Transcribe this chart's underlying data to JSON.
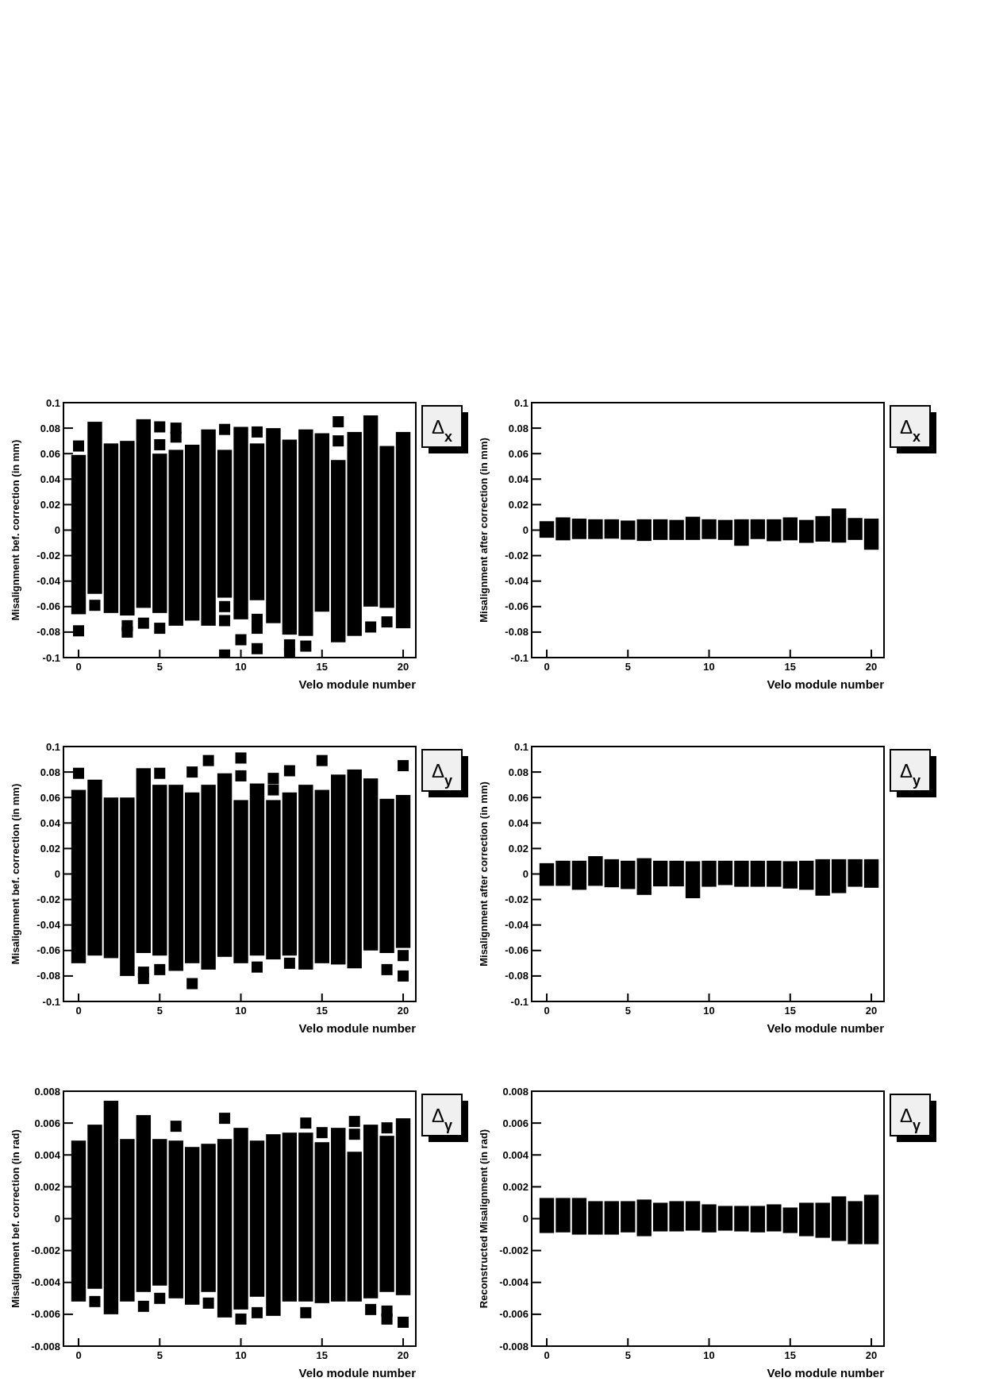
{
  "chart_data": [
    {
      "type": "bar",
      "xlabel": "Velo module number",
      "ylabel": "Misalignment bef. correction (in mm)",
      "annotations": [
        "Δ$_{x}$"
      ],
      "xlim": [
        -0.93,
        20.78
      ],
      "xticks": [
        0,
        5,
        10,
        15,
        20
      ],
      "ylim": [
        -0.1,
        0.1
      ],
      "yticks": [
        -0.1,
        -0.08,
        -0.06,
        -0.04,
        -0.02,
        0,
        0.02,
        0.04,
        0.06,
        0.08,
        0.1
      ],
      "marker": "square",
      "x": [
        0,
        1,
        2,
        3,
        4,
        5,
        6,
        7,
        8,
        9,
        10,
        11,
        12,
        13,
        14,
        15,
        16,
        17,
        18,
        19,
        20
      ],
      "series": [
        {
          "color": "#000000",
          "base": [
            -0.066,
            -0.05,
            -0.065,
            -0.067,
            -0.061,
            -0.065,
            -0.075,
            -0.071,
            -0.075,
            -0.053,
            -0.07,
            -0.055,
            -0.073,
            -0.082,
            -0.083,
            -0.064,
            -0.088,
            -0.083,
            -0.06,
            -0.061,
            -0.077
          ],
          "values": [
            0.125,
            0.135,
            0.133,
            0.137,
            0.148,
            0.125,
            0.138,
            0.138,
            0.154,
            0.116,
            0.151,
            0.123,
            0.153,
            0.153,
            0.162,
            0.14,
            0.143,
            0.16,
            0.15,
            0.127,
            0.154
          ]
        },
        {
          "type": "scatter",
          "color": "#000000",
          "x": [
            0,
            0,
            1,
            3,
            3,
            4,
            5,
            5,
            5,
            6,
            6,
            9,
            9,
            9,
            9,
            10,
            11,
            11,
            11,
            11,
            13,
            13,
            14,
            16,
            16,
            18,
            19
          ],
          "values": [
            0.066,
            -0.079,
            -0.059,
            -0.075,
            -0.08,
            -0.073,
            0.081,
            0.067,
            -0.077,
            0.08,
            0.073,
            0.079,
            -0.06,
            -0.071,
            -0.098,
            -0.086,
            0.077,
            -0.07,
            -0.077,
            -0.093,
            -0.09,
            -0.097,
            -0.091,
            0.085,
            0.07,
            -0.076,
            -0.072
          ]
        }
      ]
    },
    {
      "type": "bar",
      "xlabel": "Velo module number",
      "ylabel": "Misalignment after correction (in mm)",
      "annotations": [
        "Δ$_{x}$"
      ],
      "xlim": [
        -0.93,
        20.78
      ],
      "xticks": [
        0,
        5,
        10,
        15,
        20
      ],
      "ylim": [
        -0.1,
        0.1
      ],
      "yticks": [
        -0.1,
        -0.08,
        -0.06,
        -0.04,
        -0.02,
        0,
        0.02,
        0.04,
        0.06,
        0.08,
        0.1
      ],
      "x": [
        0,
        1,
        2,
        3,
        4,
        5,
        6,
        7,
        8,
        9,
        10,
        11,
        12,
        13,
        14,
        15,
        16,
        17,
        18,
        19,
        20
      ],
      "series": [
        {
          "color": "#000000",
          "base": [
            -0.006,
            -0.008,
            -0.007,
            -0.007,
            -0.0067,
            -0.0075,
            -0.0085,
            -0.0077,
            -0.0077,
            -0.0077,
            -0.007,
            -0.0077,
            -0.0123,
            -0.007,
            -0.0087,
            -0.008,
            -0.01,
            -0.009,
            -0.0098,
            -0.0077,
            -0.0154
          ],
          "values": [
            0.013,
            0.018,
            0.016,
            0.0155,
            0.0152,
            0.015,
            0.017,
            0.0162,
            0.0157,
            0.0182,
            0.0155,
            0.0157,
            0.0208,
            0.0155,
            0.0172,
            0.018,
            0.018,
            0.02,
            0.0268,
            0.0172,
            0.0244
          ]
        }
      ]
    },
    {
      "type": "bar",
      "xlabel": "Velo module number",
      "ylabel": "Misalignment bef. correction (in mm)",
      "annotations": [
        "Δ$_{y}$"
      ],
      "xlim": [
        -0.93,
        20.78
      ],
      "xticks": [
        0,
        5,
        10,
        15,
        20
      ],
      "ylim": [
        -0.1,
        0.1
      ],
      "yticks": [
        -0.1,
        -0.08,
        -0.06,
        -0.04,
        -0.02,
        0,
        0.02,
        0.04,
        0.06,
        0.08,
        0.1
      ],
      "marker": "square",
      "x": [
        0,
        1,
        2,
        3,
        4,
        5,
        6,
        7,
        8,
        9,
        10,
        11,
        12,
        13,
        14,
        15,
        16,
        17,
        18,
        19,
        20
      ],
      "series": [
        {
          "color": "#000000",
          "base": [
            -0.07,
            -0.064,
            -0.066,
            -0.08,
            -0.062,
            -0.064,
            -0.076,
            -0.07,
            -0.075,
            -0.065,
            -0.07,
            -0.064,
            -0.067,
            -0.064,
            -0.075,
            -0.07,
            -0.071,
            -0.074,
            -0.06,
            -0.062,
            -0.058
          ],
          "values": [
            0.136,
            0.138,
            0.126,
            0.14,
            0.145,
            0.134,
            0.146,
            0.134,
            0.145,
            0.144,
            0.128,
            0.135,
            0.125,
            0.128,
            0.145,
            0.136,
            0.149,
            0.156,
            0.135,
            0.121,
            0.12
          ]
        },
        {
          "type": "scatter",
          "color": "#000000",
          "x": [
            0,
            4,
            4,
            5,
            5,
            7,
            7,
            8,
            10,
            10,
            11,
            12,
            12,
            13,
            13,
            15,
            19,
            20,
            20,
            20
          ],
          "values": [
            0.079,
            -0.077,
            -0.082,
            0.079,
            -0.075,
            0.08,
            -0.086,
            0.089,
            0.091,
            0.077,
            -0.073,
            0.075,
            0.066,
            0.081,
            -0.07,
            0.089,
            -0.075,
            0.085,
            -0.064,
            -0.08
          ]
        }
      ]
    },
    {
      "type": "bar",
      "xlabel": "Velo module number",
      "ylabel": "Misalignment after correction (in mm)",
      "annotations": [
        "Δ$_{y}$"
      ],
      "xlim": [
        -0.93,
        20.78
      ],
      "xticks": [
        0,
        5,
        10,
        15,
        20
      ],
      "ylim": [
        -0.1,
        0.1
      ],
      "yticks": [
        -0.1,
        -0.08,
        -0.06,
        -0.04,
        -0.02,
        0,
        0.02,
        0.04,
        0.06,
        0.08,
        0.1
      ],
      "x": [
        0,
        1,
        2,
        3,
        4,
        5,
        6,
        7,
        8,
        9,
        10,
        11,
        12,
        13,
        14,
        15,
        16,
        17,
        18,
        19,
        20
      ],
      "series": [
        {
          "color": "#000000",
          "base": [
            -0.0093,
            -0.0093,
            -0.0124,
            -0.0093,
            -0.0104,
            -0.0118,
            -0.0164,
            -0.0097,
            -0.0097,
            -0.019,
            -0.01,
            -0.0087,
            -0.01,
            -0.01,
            -0.01,
            -0.0114,
            -0.0124,
            -0.017,
            -0.015,
            -0.01,
            -0.0108
          ],
          "values": [
            0.0178,
            0.0197,
            0.0228,
            0.0233,
            0.022,
            0.0222,
            0.0288,
            0.0201,
            0.0201,
            0.029,
            0.0204,
            0.0191,
            0.0204,
            0.0204,
            0.0204,
            0.0214,
            0.0228,
            0.0286,
            0.0266,
            0.0216,
            0.0224
          ]
        }
      ]
    },
    {
      "type": "bar",
      "xlabel": "Velo module number",
      "ylabel": "Misalignment bef. correction (in rad)",
      "annotations": [
        "Δ$_{γ}$"
      ],
      "xlim": [
        -0.93,
        20.78
      ],
      "xticks": [
        0,
        5,
        10,
        15,
        20
      ],
      "ylim": [
        -0.008,
        0.008
      ],
      "yticks": [
        -0.008,
        -0.006,
        -0.004,
        -0.002,
        0,
        0.002,
        0.004,
        0.006,
        0.008
      ],
      "marker": "square",
      "x": [
        0,
        1,
        2,
        3,
        4,
        5,
        6,
        7,
        8,
        9,
        10,
        11,
        12,
        13,
        14,
        15,
        16,
        17,
        18,
        19,
        20
      ],
      "series": [
        {
          "color": "#000000",
          "base": [
            -0.0052,
            -0.0044,
            -0.006,
            -0.0052,
            -0.0046,
            -0.0042,
            -0.005,
            -0.0054,
            -0.0046,
            -0.0062,
            -0.0057,
            -0.0049,
            -0.0061,
            -0.0052,
            -0.0052,
            -0.0053,
            -0.0052,
            -0.0052,
            -0.005,
            -0.0046,
            -0.0048
          ],
          "values": [
            0.0101,
            0.0103,
            0.0134,
            0.0102,
            0.0111,
            0.0092,
            0.0099,
            0.0099,
            0.0093,
            0.0112,
            0.0114,
            0.0098,
            0.0114,
            0.0106,
            0.0106,
            0.0101,
            0.0109,
            0.0094,
            0.0109,
            0.0098,
            0.0111
          ]
        },
        {
          "type": "scatter",
          "color": "#000000",
          "x": [
            1,
            4,
            5,
            6,
            8,
            9,
            10,
            11,
            14,
            14,
            15,
            17,
            17,
            18,
            19,
            19,
            19,
            20
          ],
          "values": [
            -0.0052,
            -0.0055,
            -0.005,
            0.0058,
            -0.0053,
            0.0063,
            -0.0063,
            -0.0059,
            0.006,
            -0.0059,
            0.0054,
            0.0061,
            0.0053,
            -0.0057,
            0.0057,
            -0.0058,
            -0.0063,
            -0.0065
          ]
        }
      ]
    },
    {
      "type": "bar",
      "xlabel": "Velo module number",
      "ylabel": "Reconstructed Misalignment (in rad)",
      "annotations": [
        "Δ$_{γ}$"
      ],
      "xlim": [
        -0.93,
        20.78
      ],
      "xticks": [
        0,
        5,
        10,
        15,
        20
      ],
      "ylim": [
        -0.008,
        0.008
      ],
      "yticks": [
        -0.008,
        -0.006,
        -0.004,
        -0.002,
        0,
        0.002,
        0.004,
        0.006,
        0.008
      ],
      "x": [
        0,
        1,
        2,
        3,
        4,
        5,
        6,
        7,
        8,
        9,
        10,
        11,
        12,
        13,
        14,
        15,
        16,
        17,
        18,
        19,
        20
      ],
      "series": [
        {
          "color": "#000000",
          "base": [
            -0.0009,
            -0.00086,
            -0.001,
            -0.001,
            -0.001,
            -0.00086,
            -0.0011,
            -0.0008,
            -0.0008,
            -0.00075,
            -0.00086,
            -0.00075,
            -0.0008,
            -0.00086,
            -0.0008,
            -0.0009,
            -0.0011,
            -0.0012,
            -0.0014,
            -0.0016,
            -0.0016
          ],
          "values": [
            0.0022,
            0.00216,
            0.0023,
            0.0021,
            0.0021,
            0.00196,
            0.0023,
            0.0018,
            0.0019,
            0.00185,
            0.00176,
            0.00155,
            0.0016,
            0.00166,
            0.0017,
            0.0016,
            0.0021,
            0.0022,
            0.0028,
            0.0027,
            0.0031
          ]
        }
      ]
    }
  ]
}
